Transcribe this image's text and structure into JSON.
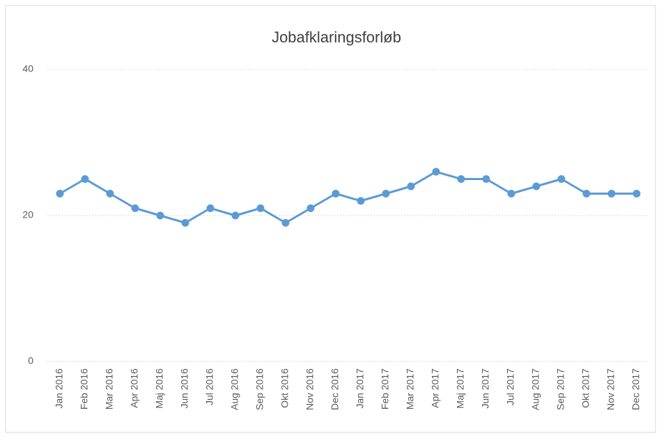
{
  "chart_data": {
    "type": "line",
    "title": "Jobafklaringsforløb",
    "categories": [
      "Jan 2016",
      "Feb 2016",
      "Mar 2016",
      "Apr 2016",
      "Maj 2016",
      "Jun 2016",
      "Jul 2016",
      "Aug 2016",
      "Sep 2016",
      "Okt 2016",
      "Nov 2016",
      "Dec 2016",
      "Jan 2017",
      "Feb 2017",
      "Mar 2017",
      "Apr 2017",
      "Maj 2017",
      "Jun 2017",
      "Jul 2017",
      "Aug 2017",
      "Sep 2017",
      "Okt 2017",
      "Nov 2017",
      "Dec 2017"
    ],
    "series": [
      {
        "name": "Jobafklaringsforløb",
        "color": "#5b9bd5",
        "values": [
          23,
          25,
          23,
          21,
          20,
          19,
          21,
          20,
          21,
          19,
          21,
          23,
          22,
          23,
          24,
          26,
          25,
          25,
          23,
          24,
          25,
          23,
          23,
          23
        ]
      }
    ],
    "ylim": [
      0,
      40
    ],
    "yticks": [
      0,
      20,
      40
    ],
    "grid": true
  }
}
